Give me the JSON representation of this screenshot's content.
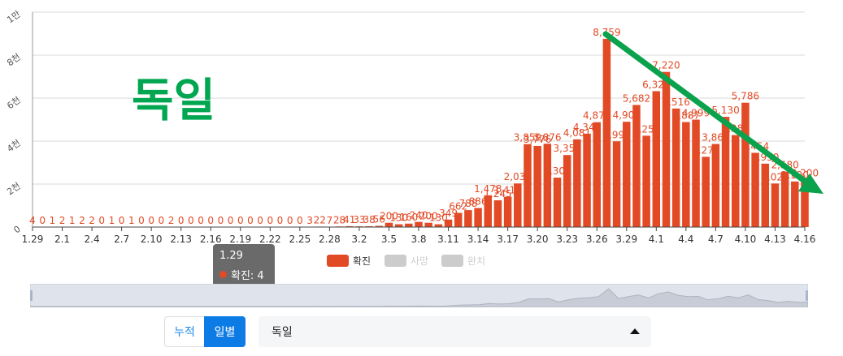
{
  "chart_data": {
    "type": "bar",
    "annotation_text": "독일",
    "y_ticks": [
      "0",
      "2천",
      "4천",
      "6천",
      "8천",
      "1만"
    ],
    "ylim": [
      0,
      10000
    ],
    "x_tick_labels": [
      "1.29",
      "2.1",
      "2.4",
      "2.7",
      "2.10",
      "2.13",
      "2.16",
      "2.19",
      "2.22",
      "2.25",
      "2.28",
      "3.2",
      "3.5",
      "3.8",
      "3.11",
      "3.14",
      "3.17",
      "3.20",
      "3.23",
      "3.26",
      "3.29",
      "4.1",
      "4.4",
      "4.7",
      "4.10",
      "4.13",
      "4.16"
    ],
    "legend": [
      {
        "name": "확진",
        "color": "#e24a26",
        "active": true
      },
      {
        "name": "사망",
        "color": "#cccccc",
        "active": false
      },
      {
        "name": "완치",
        "color": "#cccccc",
        "active": false
      }
    ],
    "categories": [
      "1.29",
      "1.30",
      "1.31",
      "2.1",
      "2.2",
      "2.3",
      "2.4",
      "2.5",
      "2.6",
      "2.7",
      "2.8",
      "2.9",
      "2.10",
      "2.11",
      "2.12",
      "2.13",
      "2.14",
      "2.15",
      "2.16",
      "2.17",
      "2.18",
      "2.19",
      "2.20",
      "2.21",
      "2.22",
      "2.23",
      "2.24",
      "2.25",
      "2.26",
      "2.27",
      "2.28",
      "2.29",
      "3.1",
      "3.2",
      "3.3",
      "3.4",
      "3.5",
      "3.6",
      "3.7",
      "3.8",
      "3.9",
      "3.10",
      "3.11",
      "3.12",
      "3.13",
      "3.14",
      "3.15",
      "3.16",
      "3.17",
      "3.18",
      "3.19",
      "3.20",
      "3.21",
      "3.22",
      "3.23",
      "3.24",
      "3.25",
      "3.26",
      "3.27",
      "3.28",
      "3.29",
      "3.30",
      "3.31",
      "4.1",
      "4.2",
      "4.3",
      "4.4",
      "4.5",
      "4.6",
      "4.7",
      "4.8",
      "4.9",
      "4.10",
      "4.11",
      "4.12",
      "4.13",
      "4.14",
      "4.15",
      "4.16"
    ],
    "series": [
      {
        "name": "확진",
        "color": "#e24a26",
        "values": [
          4,
          0,
          1,
          2,
          1,
          2,
          2,
          0,
          1,
          0,
          1,
          0,
          0,
          0,
          2,
          0,
          0,
          0,
          0,
          0,
          0,
          0,
          0,
          0,
          0,
          0,
          0,
          0,
          3,
          22,
          7,
          28,
          41,
          33,
          38,
          56,
          200,
          130,
          160,
          240,
          200,
          130,
          349,
          662,
          788,
          886,
          1478,
          1245,
          1411,
          2030,
          3859,
          3776,
          3876,
          2300,
          3350,
          4081,
          4344,
          4879,
          8759,
          3990,
          4900,
          5682,
          4250,
          6324,
          7220,
          5516,
          4887,
          4999,
          3270,
          3866,
          5130,
          4280,
          5786,
          3454,
          2950,
          2028,
          2580,
          2120,
          2200
        ],
        "labels": [
          "4",
          "0",
          "1",
          "2",
          "1",
          "2",
          "2",
          "0",
          "1",
          "0",
          "1",
          "0",
          "0",
          "0",
          "2",
          "0",
          "0",
          "0",
          "0",
          "0",
          "0",
          "0",
          "0",
          "0",
          "0",
          "0",
          "0",
          "0",
          "3",
          "22",
          "7",
          "28",
          "41",
          "33",
          "38",
          "56",
          "200",
          "130",
          "160",
          "240",
          "200",
          "130",
          "349",
          "662",
          "788",
          "886",
          "1,478",
          "1,245",
          "1,411",
          "2,030",
          "3,859",
          "3,776",
          "3,876",
          "2,300",
          "3,350",
          "4,081",
          "4,344",
          "4,879",
          "8,759",
          "3,990",
          "4,900",
          "5,682",
          "4,250",
          "6,324",
          "7,220",
          "5,516",
          "4,887",
          "4,999",
          "3,270",
          "3,866",
          "5,130",
          "4,280",
          "5,786",
          "3,454",
          "2,950",
          "2,028",
          "2,580",
          "2,120",
          "2,200"
        ]
      }
    ]
  },
  "tooltip": {
    "date": "1.29",
    "text": "확진: 4"
  },
  "controls": {
    "cumulative_label": "누적",
    "daily_label": "일별",
    "country_value": "독일"
  }
}
